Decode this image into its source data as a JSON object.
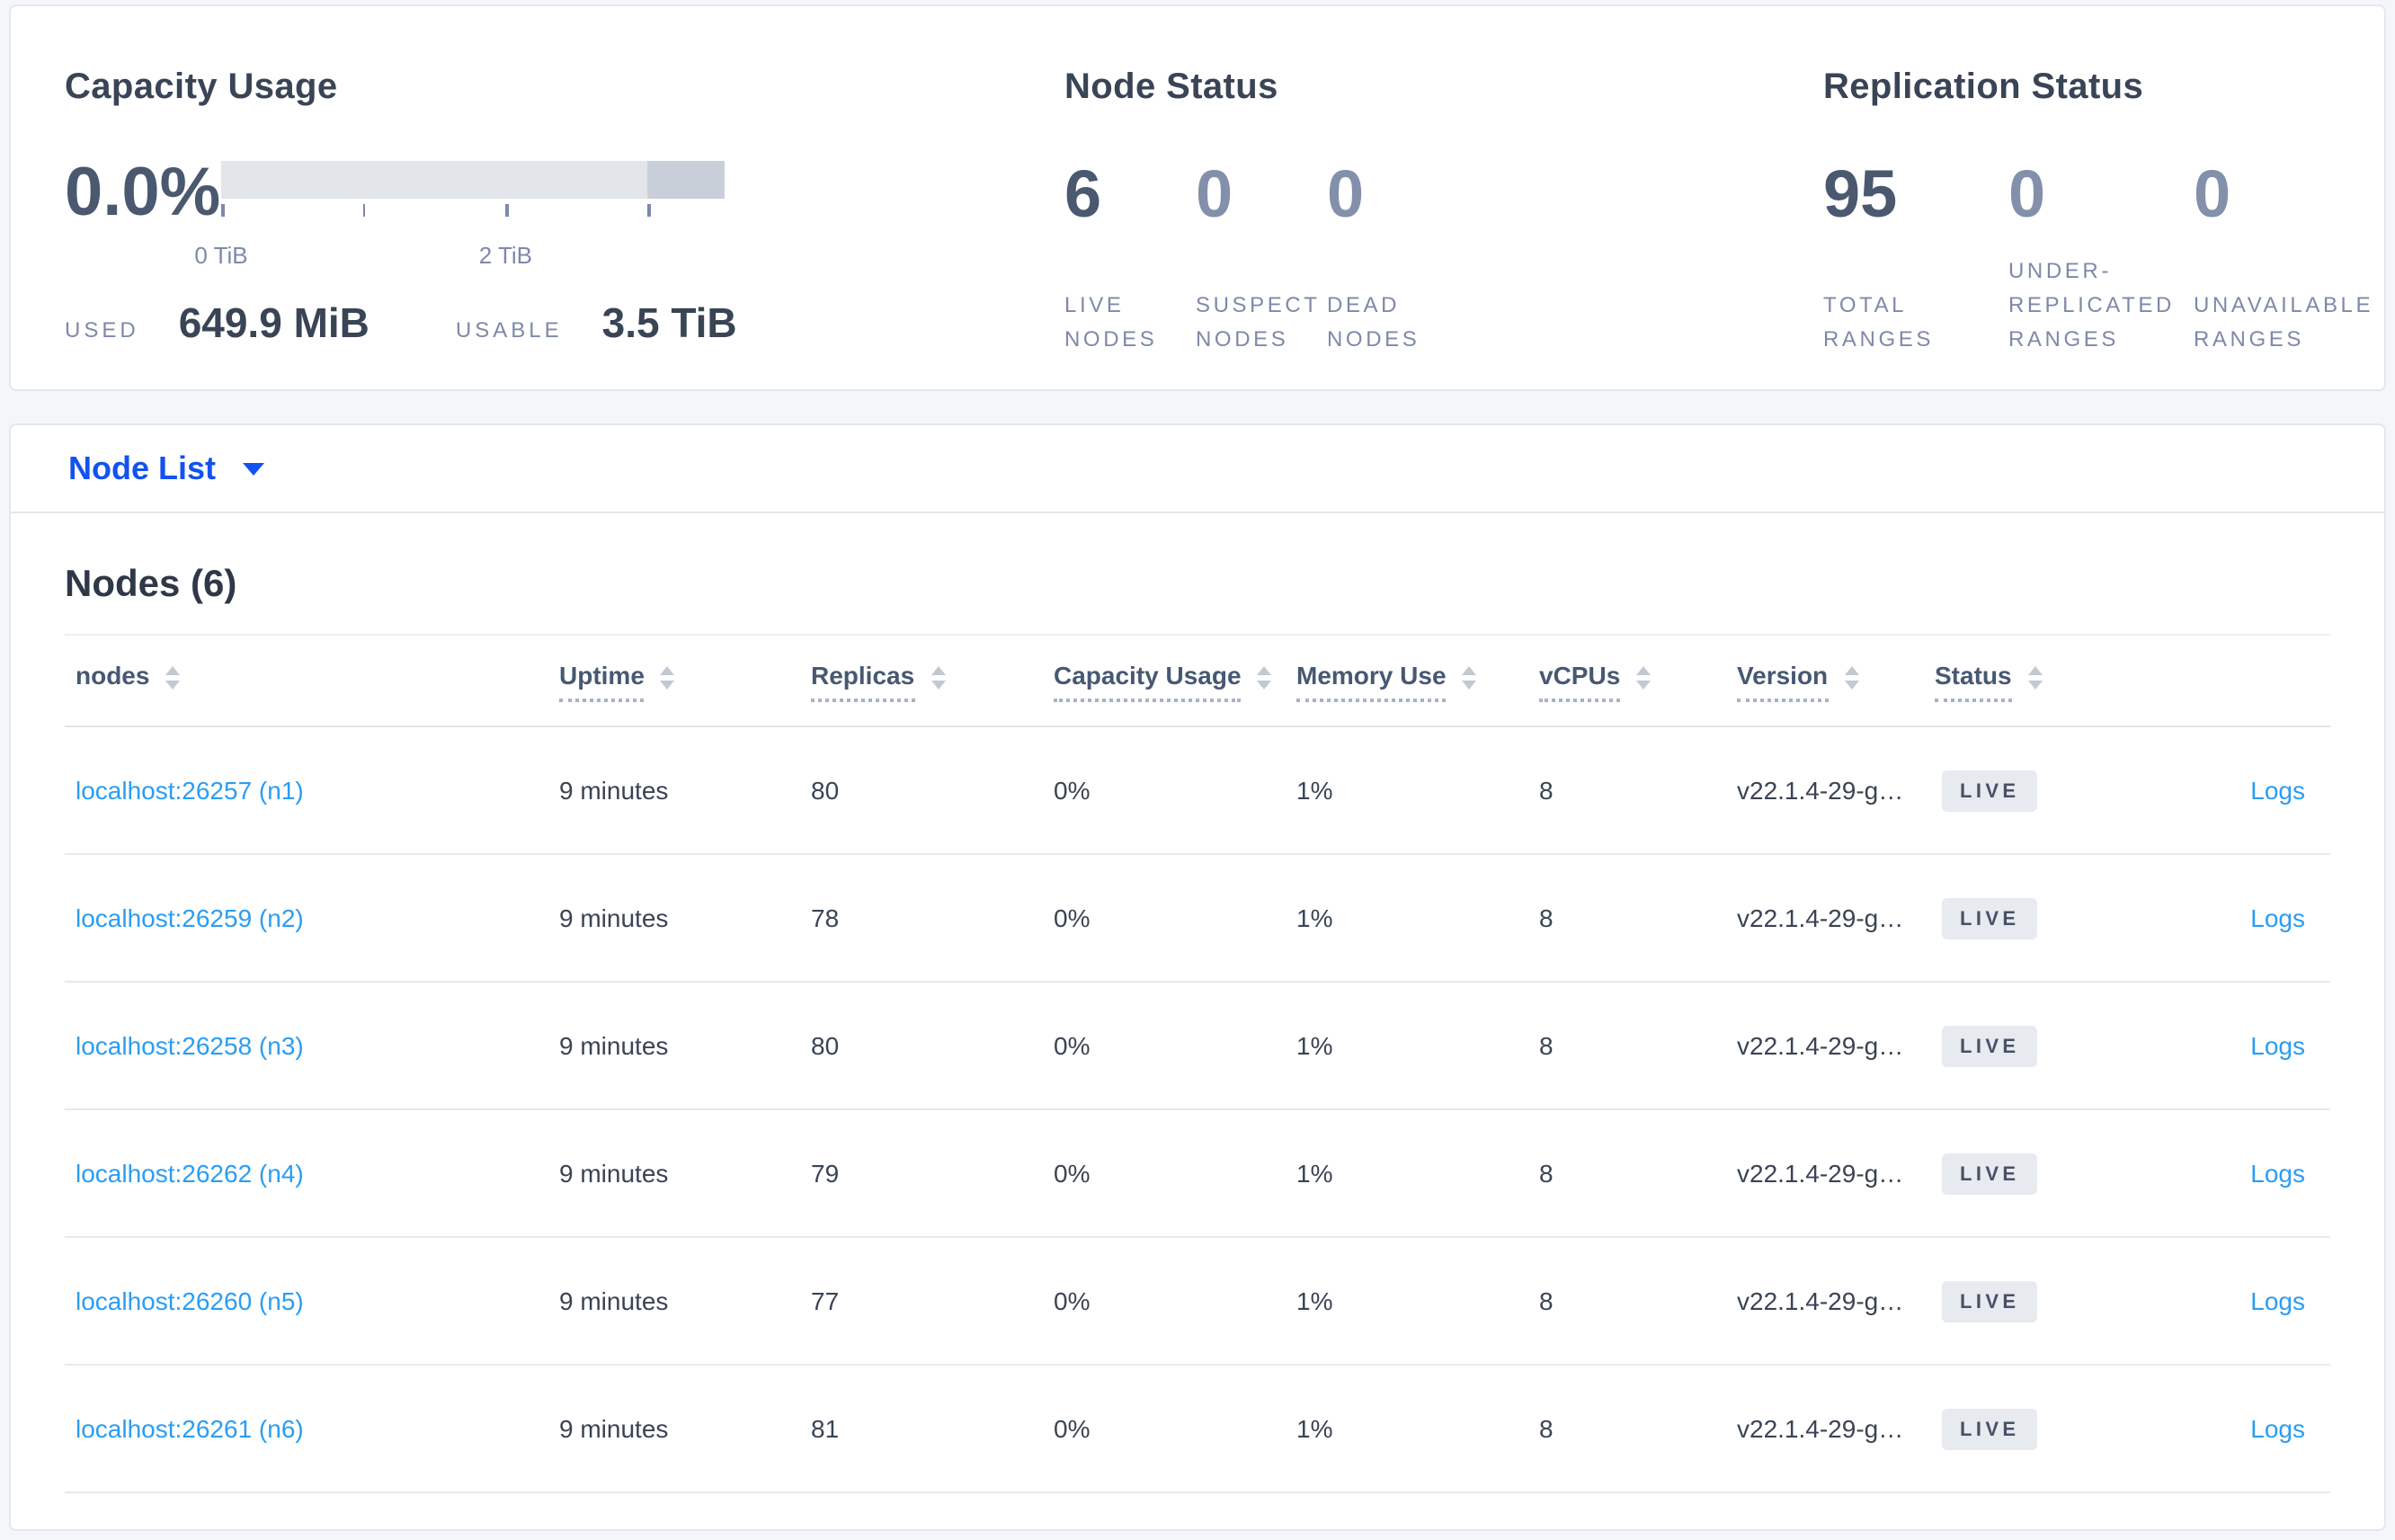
{
  "colors": {
    "accent_blue": "#1152f0",
    "link_blue": "#2a9df4",
    "badge_bg": "#e7eaef",
    "bar_track": "#e2e5ea",
    "bar_segment": "#c9cfd9",
    "page_bg": "#f5f6fa"
  },
  "summary": {
    "capacity": {
      "title": "Capacity Usage",
      "percent": "0.0%",
      "bar": {
        "segment_start_pct": 84.7,
        "track_color": "#e2e5ea",
        "segment_color": "#c9cfd9"
      },
      "tick_labels": [
        "0 TiB",
        "2 TiB"
      ],
      "used_label": "USED",
      "used_value": "649.9 MiB",
      "usable_label": "USABLE",
      "usable_value": "3.5 TiB"
    },
    "node_status": {
      "title": "Node Status",
      "stats": [
        {
          "value": "6",
          "label": "LIVE NODES"
        },
        {
          "value": "0",
          "label": "SUSPECT NODES"
        },
        {
          "value": "0",
          "label": "DEAD NODES"
        }
      ]
    },
    "replication_status": {
      "title": "Replication Status",
      "stats": [
        {
          "value": "95",
          "label": "TOTAL RANGES"
        },
        {
          "value": "0",
          "label": "UNDER-REPLICATED RANGES"
        },
        {
          "value": "0",
          "label": "UNAVAILABLE RANGES"
        }
      ]
    }
  },
  "view_selector": {
    "label": "Node List"
  },
  "nodes_section": {
    "title": "Nodes (6)",
    "columns": [
      {
        "label": "nodes"
      },
      {
        "label": "Uptime"
      },
      {
        "label": "Replicas"
      },
      {
        "label": "Capacity Usage"
      },
      {
        "label": "Memory Use"
      },
      {
        "label": "vCPUs"
      },
      {
        "label": "Version"
      },
      {
        "label": "Status"
      }
    ],
    "rows": [
      {
        "node": "localhost:26257 (n1)",
        "uptime": "9 minutes",
        "replicas": "80",
        "capacity": "0%",
        "memory": "1%",
        "vcpus": "8",
        "version": "v22.1.4-29-g…",
        "status": "LIVE",
        "logs": "Logs"
      },
      {
        "node": "localhost:26259 (n2)",
        "uptime": "9 minutes",
        "replicas": "78",
        "capacity": "0%",
        "memory": "1%",
        "vcpus": "8",
        "version": "v22.1.4-29-g…",
        "status": "LIVE",
        "logs": "Logs"
      },
      {
        "node": "localhost:26258 (n3)",
        "uptime": "9 minutes",
        "replicas": "80",
        "capacity": "0%",
        "memory": "1%",
        "vcpus": "8",
        "version": "v22.1.4-29-g…",
        "status": "LIVE",
        "logs": "Logs"
      },
      {
        "node": "localhost:26262 (n4)",
        "uptime": "9 minutes",
        "replicas": "79",
        "capacity": "0%",
        "memory": "1%",
        "vcpus": "8",
        "version": "v22.1.4-29-g…",
        "status": "LIVE",
        "logs": "Logs"
      },
      {
        "node": "localhost:26260 (n5)",
        "uptime": "9 minutes",
        "replicas": "77",
        "capacity": "0%",
        "memory": "1%",
        "vcpus": "8",
        "version": "v22.1.4-29-g…",
        "status": "LIVE",
        "logs": "Logs"
      },
      {
        "node": "localhost:26261 (n6)",
        "uptime": "9 minutes",
        "replicas": "81",
        "capacity": "0%",
        "memory": "1%",
        "vcpus": "8",
        "version": "v22.1.4-29-g…",
        "status": "LIVE",
        "logs": "Logs"
      }
    ]
  }
}
